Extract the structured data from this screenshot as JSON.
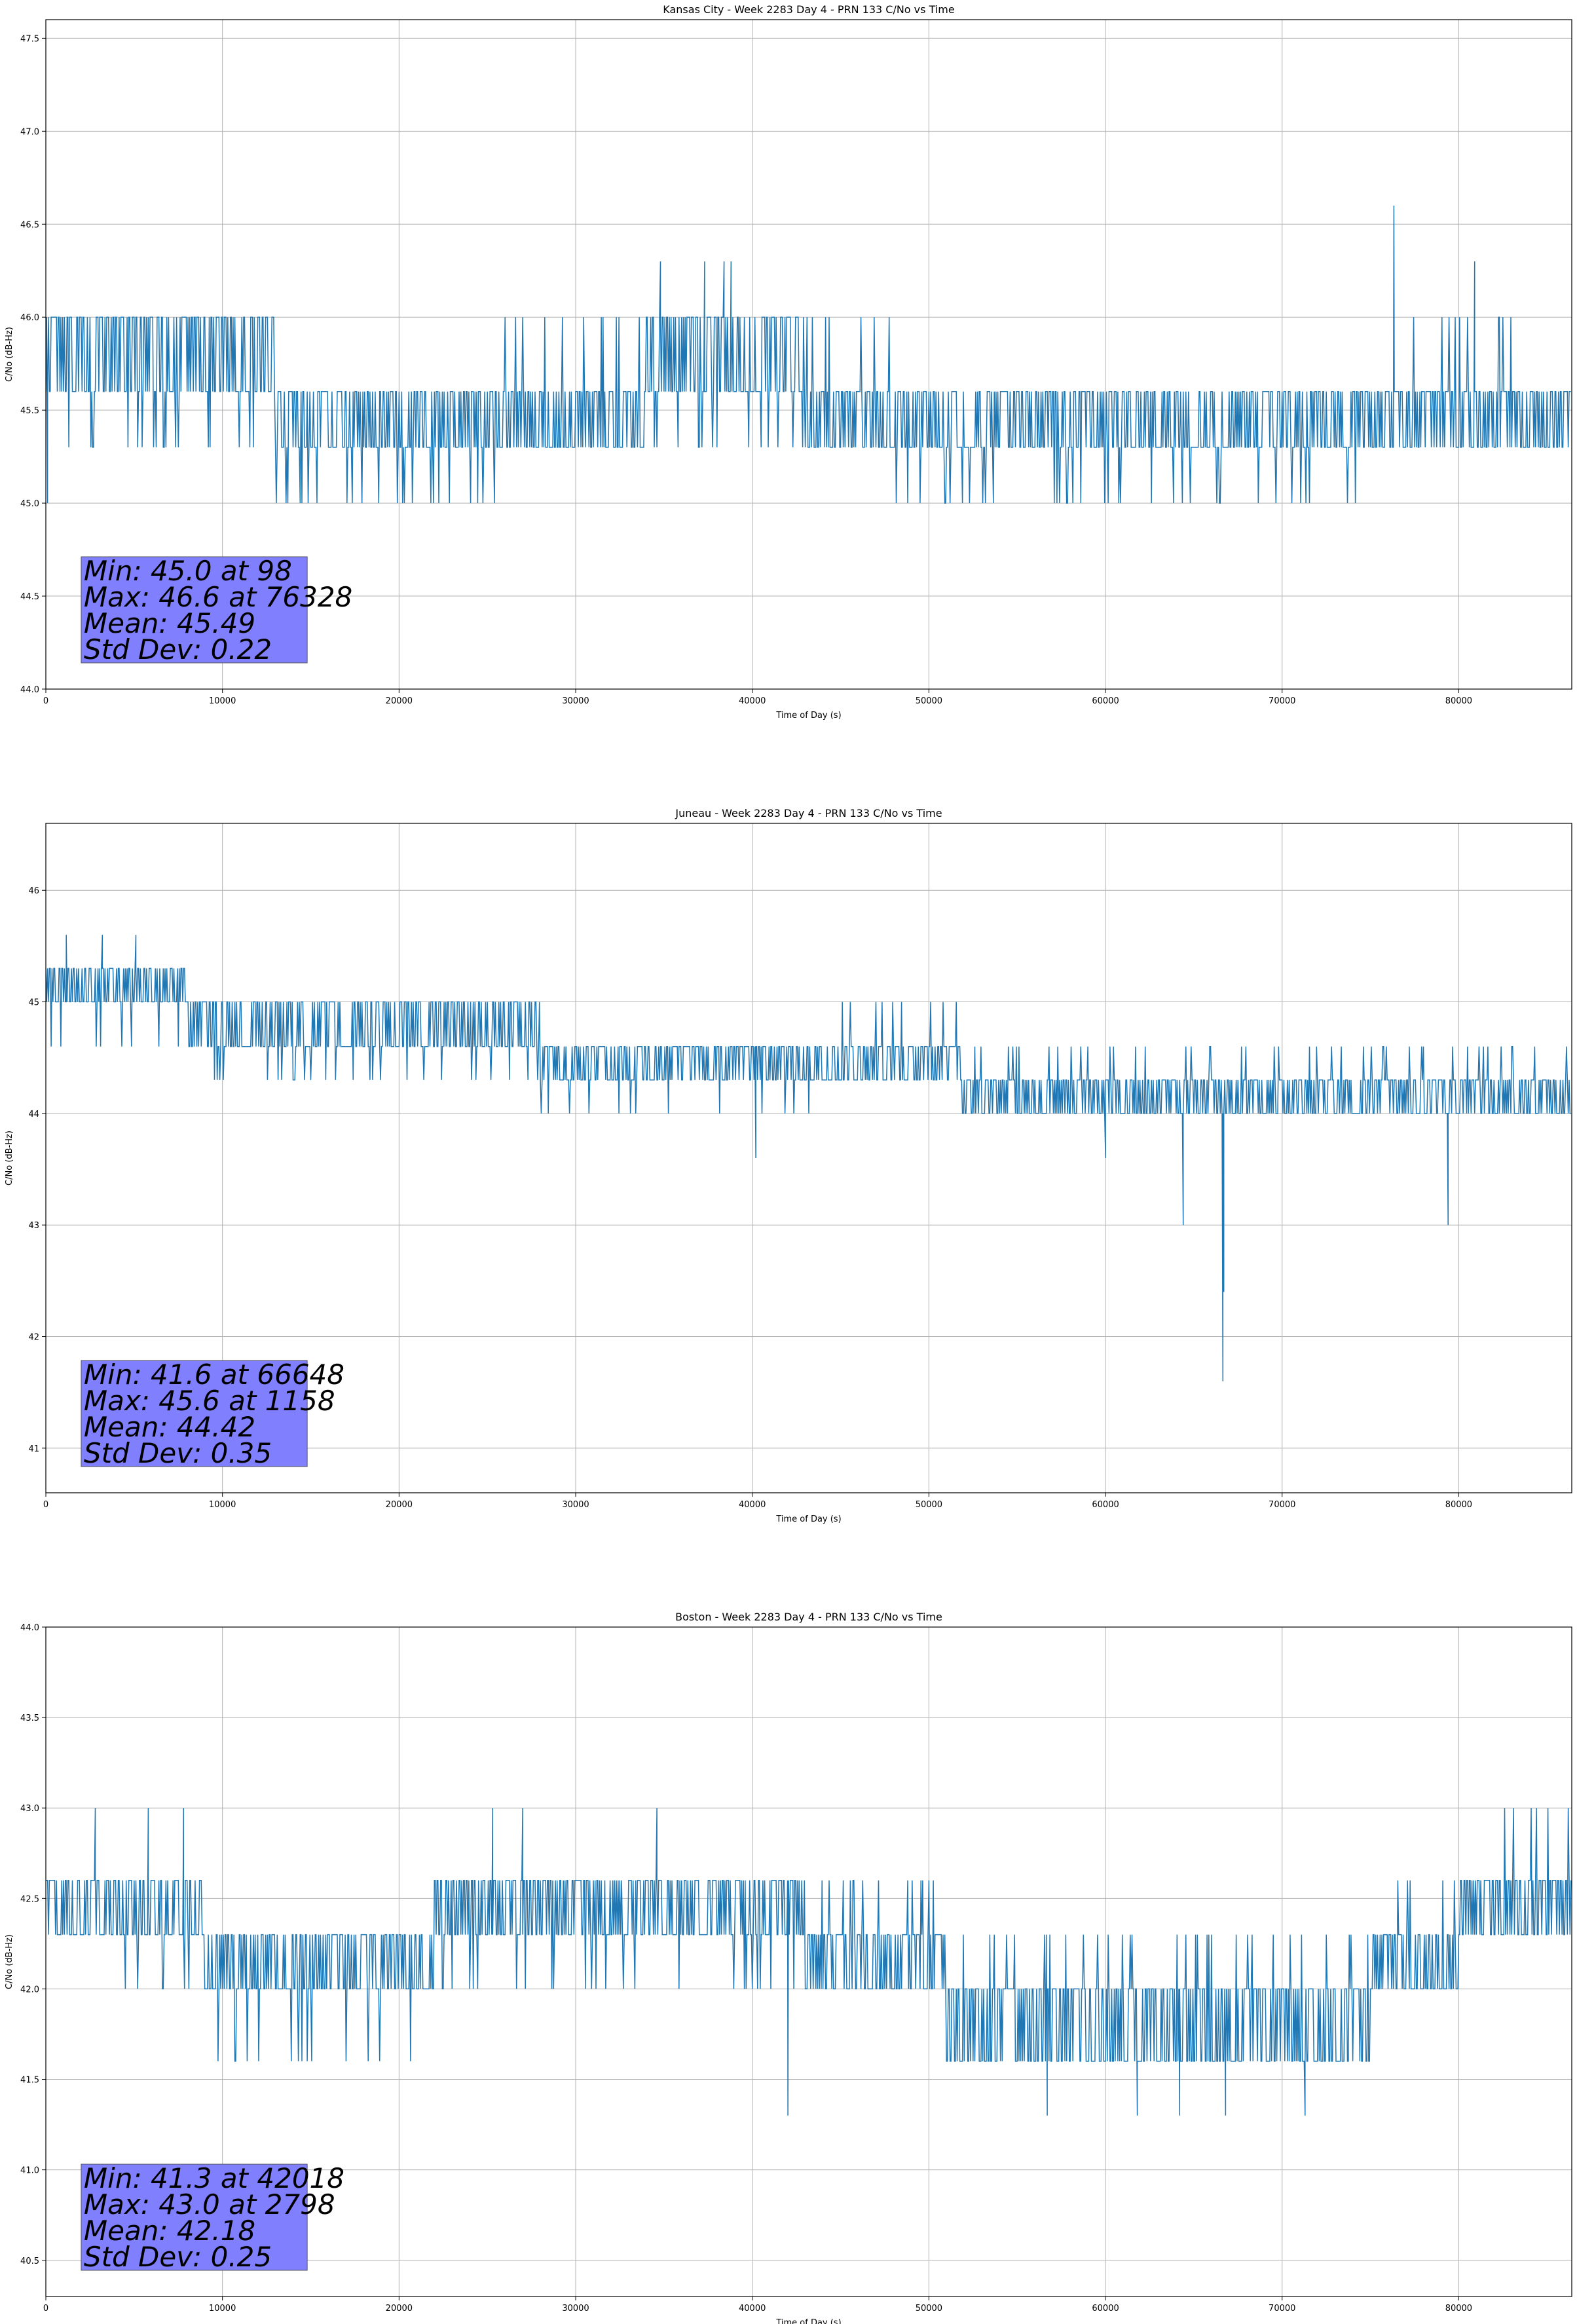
{
  "chart_data": [
    {
      "type": "line",
      "title": "Kansas City - Week 2283 Day 4 - PRN 133 C/No vs Time",
      "xlabel": "Time of Day (s)",
      "ylabel": "C/No (dB-Hz)",
      "xlim": [
        0,
        86400
      ],
      "ylim": [
        44.0,
        47.6
      ],
      "xticks": [
        0,
        10000,
        20000,
        30000,
        40000,
        50000,
        60000,
        70000,
        80000
      ],
      "yticks": [
        44.0,
        44.5,
        45.0,
        45.5,
        46.0,
        46.5,
        47.0,
        47.5
      ],
      "ytick_labels": [
        "44.0",
        "44.5",
        "45.0",
        "45.5",
        "46.0",
        "46.5",
        "47.0",
        "47.5"
      ],
      "grid": true,
      "series_color": "#1f77b4",
      "stats_box_color": "#8080ff",
      "stats": [
        "Min: 45.0 at 98",
        "Max: 46.6 at 76328",
        "Mean: 45.49",
        "Std Dev: 0.22"
      ],
      "levels": [
        45.0,
        45.3,
        45.6,
        46.0,
        46.3
      ],
      "x_step": 50,
      "segments": [
        [
          0,
          8000,
          [
            46.0,
            45.6
          ],
          45.3
        ],
        [
          8000,
          13000,
          [
            45.6,
            46.0
          ],
          45.3
        ],
        [
          13000,
          26000,
          [
            45.6,
            45.3
          ],
          45.0
        ],
        [
          26000,
          34000,
          [
            45.6,
            45.3
          ],
          46.0
        ],
        [
          34000,
          43000,
          [
            46.0,
            45.6
          ],
          45.3
        ],
        [
          43000,
          48000,
          [
            45.6,
            45.3
          ],
          46.0
        ],
        [
          48000,
          58000,
          [
            45.3,
            45.6
          ],
          45.0
        ],
        [
          58000,
          76000,
          [
            45.6,
            45.3
          ],
          45.0
        ],
        [
          76000,
          86400,
          [
            45.6,
            45.3
          ],
          46.0
        ]
      ],
      "spikes": [
        [
          98,
          45.0
        ],
        [
          34800,
          46.3
        ],
        [
          37300,
          46.3
        ],
        [
          38400,
          46.3
        ],
        [
          38800,
          46.3
        ],
        [
          76328,
          46.6
        ],
        [
          80900,
          46.3
        ]
      ]
    },
    {
      "type": "line",
      "title": "Juneau - Week 2283 Day 4 - PRN 133 C/No vs Time",
      "xlabel": "Time of Day (s)",
      "ylabel": "C/No (dB-Hz)",
      "xlim": [
        0,
        86400
      ],
      "ylim": [
        40.6,
        46.6
      ],
      "xticks": [
        0,
        10000,
        20000,
        30000,
        40000,
        50000,
        60000,
        70000,
        80000
      ],
      "yticks": [
        41,
        42,
        43,
        44,
        45,
        46
      ],
      "ytick_labels": [
        "41",
        "42",
        "43",
        "44",
        "45",
        "46"
      ],
      "grid": true,
      "series_color": "#1f77b4",
      "stats_box_color": "#8080ff",
      "stats": [
        "Min: 41.6 at 66648",
        "Max: 45.6 at 1158",
        "Mean: 44.42",
        "Std Dev: 0.35"
      ],
      "levels": [
        41.6,
        43.0,
        43.6,
        44.0,
        44.3,
        44.6,
        45.0,
        45.3,
        45.6
      ],
      "x_step": 50,
      "segments": [
        [
          0,
          8000,
          [
            45.3,
            45.0
          ],
          44.6
        ],
        [
          8000,
          16000,
          [
            45.0,
            44.6
          ],
          44.3
        ],
        [
          16000,
          28000,
          [
            45.0,
            44.6
          ],
          44.3
        ],
        [
          28000,
          45000,
          [
            44.6,
            44.3
          ],
          44.0
        ],
        [
          45000,
          51800,
          [
            44.6,
            44.3
          ],
          45.0
        ],
        [
          51800,
          86400,
          [
            44.3,
            44.0
          ],
          44.6
        ]
      ],
      "spikes": [
        [
          1158,
          45.6
        ],
        [
          3200,
          45.6
        ],
        [
          5100,
          45.6
        ],
        [
          40200,
          43.6
        ],
        [
          60000,
          43.6
        ],
        [
          64400,
          43.0
        ],
        [
          66648,
          41.6
        ],
        [
          66700,
          42.4
        ],
        [
          79400,
          43.0
        ]
      ]
    },
    {
      "type": "line",
      "title": "Boston - Week 2283 Day 4 - PRN 133 C/No vs Time",
      "xlabel": "Time of Day (s)",
      "ylabel": "C/No (dB-Hz)",
      "xlim": [
        0,
        86400
      ],
      "ylim": [
        40.3,
        44.0
      ],
      "xticks": [
        0,
        10000,
        20000,
        30000,
        40000,
        50000,
        60000,
        70000,
        80000
      ],
      "yticks": [
        40.5,
        41.0,
        41.5,
        42.0,
        42.5,
        43.0,
        43.5,
        44.0
      ],
      "ytick_labels": [
        "40.5",
        "41.0",
        "41.5",
        "42.0",
        "42.5",
        "43.0",
        "43.5",
        "44.0"
      ],
      "grid": true,
      "series_color": "#1f77b4",
      "stats_box_color": "#8080ff",
      "stats": [
        "Min: 41.3 at 42018",
        "Max: 43.0 at 2798",
        "Mean: 42.18",
        "Std Dev: 0.25"
      ],
      "levels": [
        41.3,
        41.6,
        42.0,
        42.3,
        42.6,
        43.0
      ],
      "x_step": 50,
      "segments": [
        [
          0,
          9000,
          [
            42.6,
            42.3
          ],
          42.0
        ],
        [
          9000,
          22000,
          [
            42.3,
            42.0
          ],
          41.6
        ],
        [
          22000,
          43000,
          [
            42.6,
            42.3
          ],
          42.0
        ],
        [
          43000,
          51000,
          [
            42.3,
            42.0
          ],
          42.6
        ],
        [
          51000,
          75000,
          [
            42.0,
            41.6
          ],
          42.3
        ],
        [
          75000,
          80000,
          [
            42.3,
            42.0
          ],
          42.6
        ],
        [
          80000,
          86400,
          [
            42.6,
            42.3
          ],
          43.0
        ]
      ],
      "spikes": [
        [
          2798,
          43.0
        ],
        [
          5800,
          43.0
        ],
        [
          7800,
          43.0
        ],
        [
          25300,
          43.0
        ],
        [
          27000,
          43.0
        ],
        [
          34600,
          43.0
        ],
        [
          42018,
          41.3
        ],
        [
          56700,
          41.3
        ],
        [
          61800,
          41.3
        ],
        [
          64200,
          41.3
        ],
        [
          66800,
          41.3
        ],
        [
          71300,
          41.3
        ]
      ]
    }
  ]
}
